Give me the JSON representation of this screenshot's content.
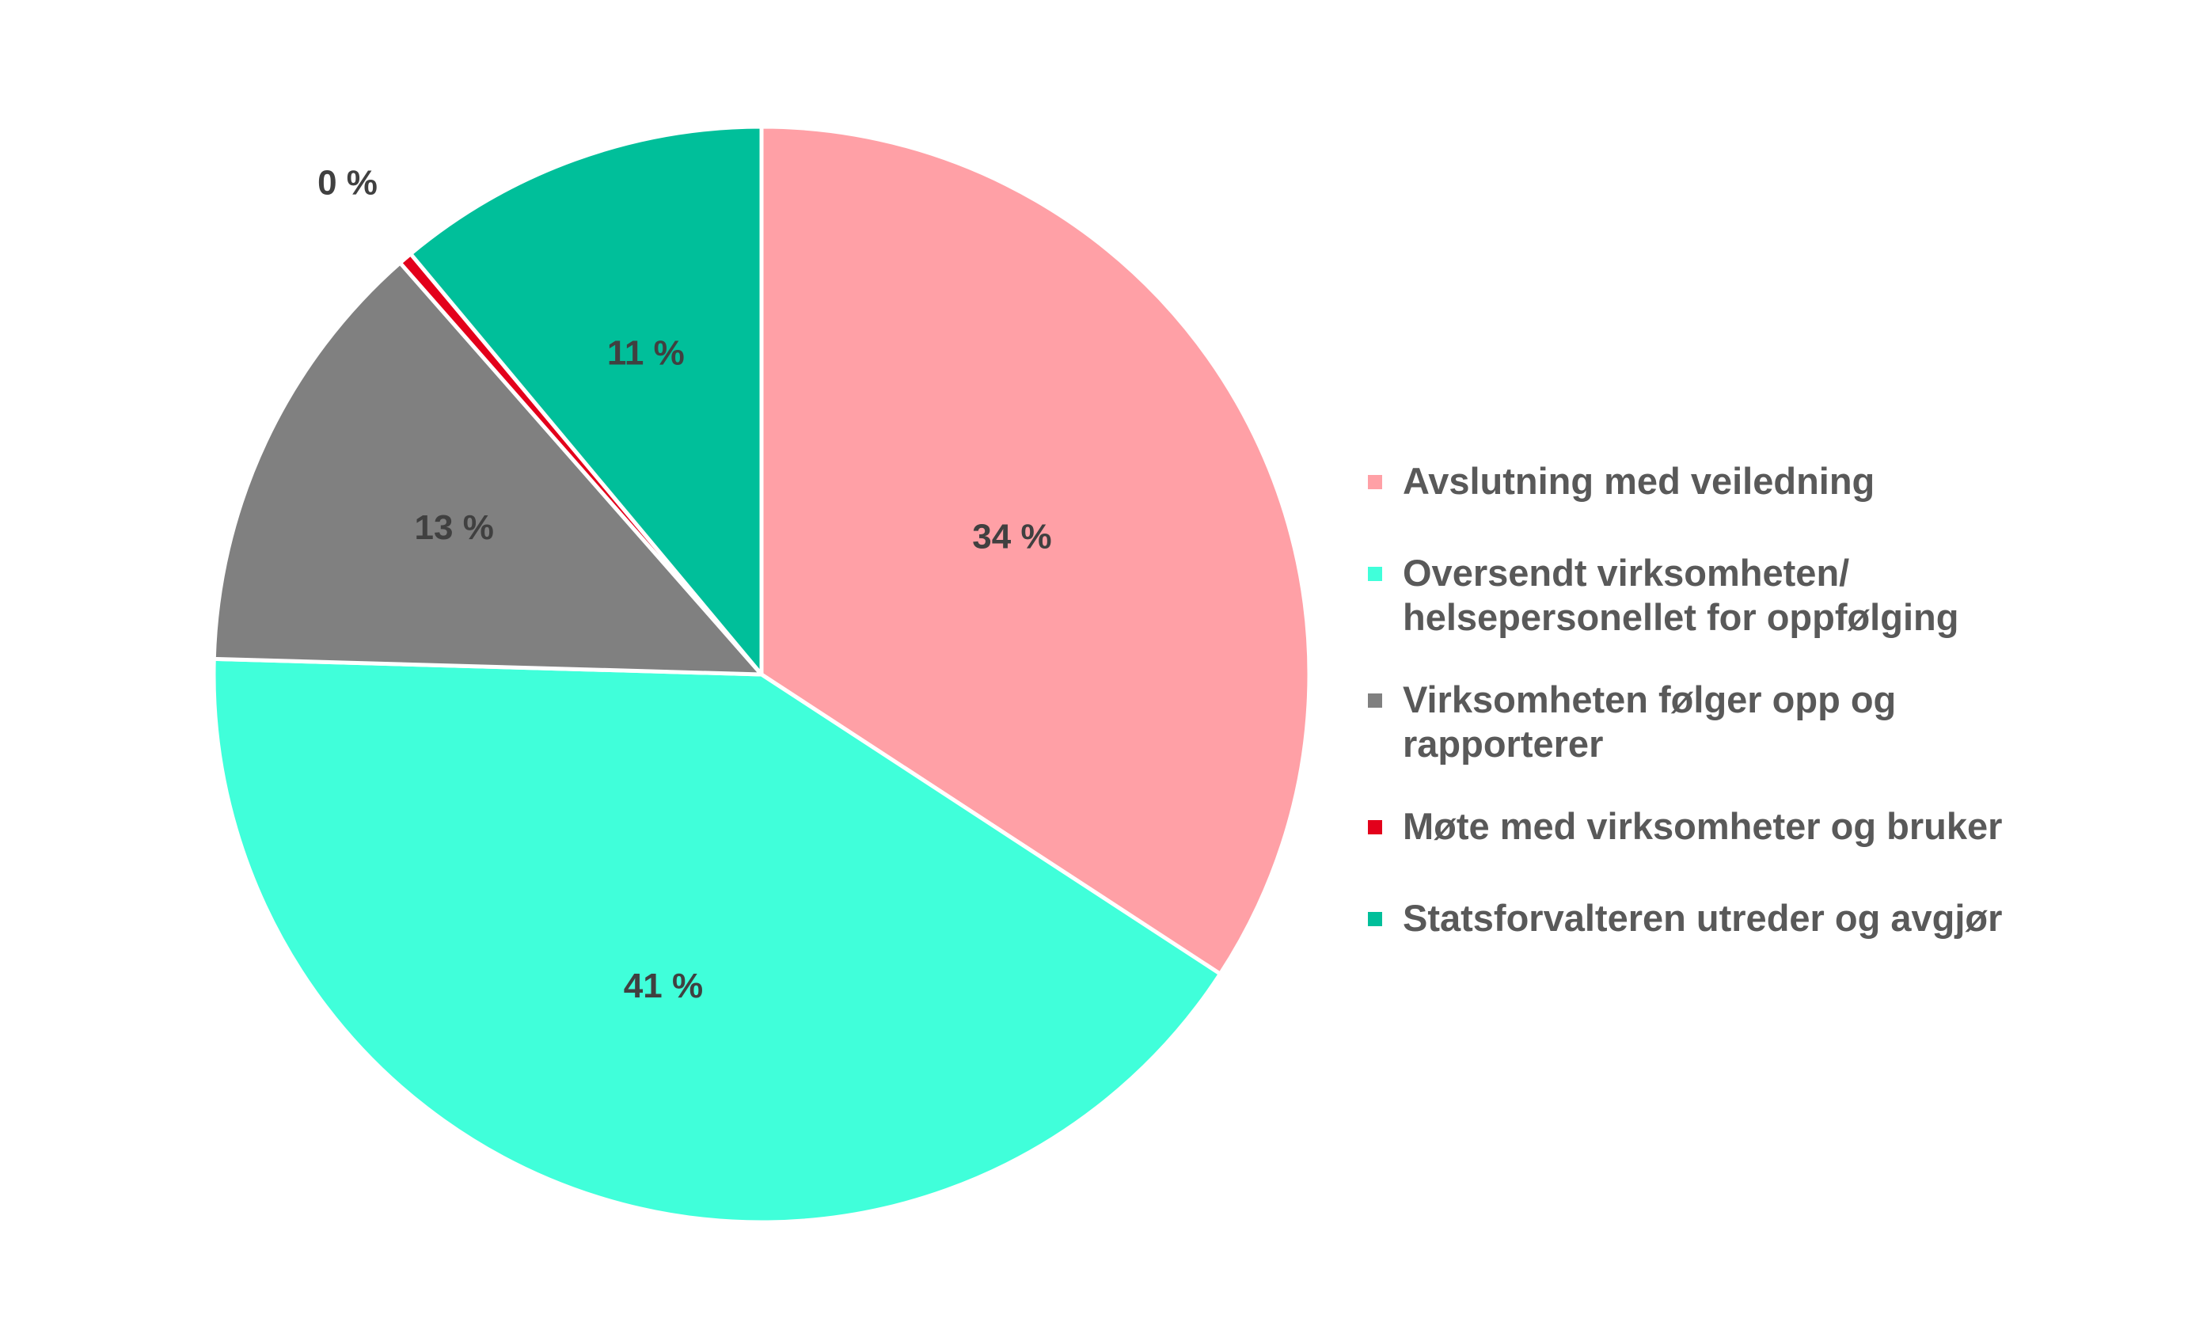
{
  "chart_data": {
    "type": "pie",
    "start_angle_deg": 0,
    "direction": "clockwise",
    "slices": [
      {
        "label": "Avslutning med veiledning",
        "value": 34,
        "display": "34 %",
        "color": "#FFA0A6"
      },
      {
        "label": "Oversendt virksomheten/\nhelsepersonellet for oppfølging",
        "value": 41,
        "display": "41 %",
        "color": "#40FFDA"
      },
      {
        "label": "Virksomheten følger opp og\nrapporterer",
        "value": 13,
        "display": "13 %",
        "color": "#808080"
      },
      {
        "label": "Møte med virksomheter og bruker",
        "value": 0.4,
        "display": "0 %",
        "color": "#E3001B"
      },
      {
        "label": "Statsforvalteren utreder og avgjør",
        "value": 11,
        "display": "11 %",
        "color": "#00BF9A"
      }
    ],
    "legend_position": "right"
  }
}
